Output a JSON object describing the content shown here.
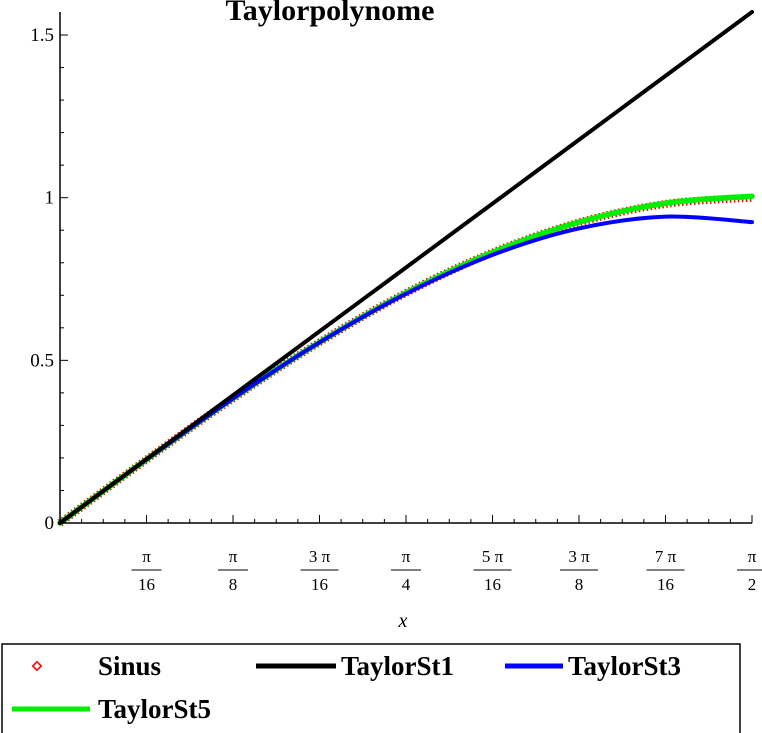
{
  "chart_data": {
    "type": "line",
    "title": "Taylorpolynome",
    "xlabel": "x",
    "ylabel": "",
    "xlim": [
      0,
      1.5707963
    ],
    "ylim": [
      0,
      1.5707963
    ],
    "grid": false,
    "legend_placement": "bottom",
    "x_ticks": [
      {
        "value": 0.19634954,
        "num": "π",
        "den": "16"
      },
      {
        "value": 0.39269908,
        "num": "π",
        "den": "8"
      },
      {
        "value": 0.58904862,
        "num": "3 π",
        "den": "16"
      },
      {
        "value": 0.78539816,
        "num": "π",
        "den": "4"
      },
      {
        "value": 0.9817477,
        "num": "5 π",
        "den": "16"
      },
      {
        "value": 1.17809725,
        "num": "3 π",
        "den": "8"
      },
      {
        "value": 1.37444679,
        "num": "7 π",
        "den": "16"
      },
      {
        "value": 1.57079633,
        "num": "π",
        "den": "2"
      }
    ],
    "y_ticks": [
      {
        "value": 0,
        "label": "0"
      },
      {
        "value": 0.5,
        "label": "0.5"
      },
      {
        "value": 1,
        "label": "1"
      },
      {
        "value": 1.5,
        "label": "1.5"
      }
    ],
    "x": [
      0,
      0.19635,
      0.3927,
      0.58905,
      0.7854,
      0.98175,
      1.1781,
      1.37445,
      1.5708
    ],
    "series": [
      {
        "name": "Sinus",
        "style": "points",
        "color": "#ff0000",
        "values": [
          0,
          0.1951,
          0.3827,
          0.5556,
          0.7071,
          0.8315,
          0.9239,
          0.9808,
          1.0
        ]
      },
      {
        "name": "TaylorSt1",
        "style": "line",
        "color": "#000000",
        "values": [
          0,
          0.1963,
          0.3927,
          0.589,
          0.7854,
          0.9817,
          1.1781,
          1.3744,
          1.5708
        ]
      },
      {
        "name": "TaylorSt3",
        "style": "line",
        "color": "#0000ff",
        "values": [
          0,
          0.1951,
          0.3826,
          0.555,
          0.7046,
          0.8241,
          0.9056,
          0.9417,
          0.9248
        ]
      },
      {
        "name": "TaylorSt5",
        "style": "line",
        "color": "#00ee00",
        "values": [
          0,
          0.1951,
          0.3827,
          0.5556,
          0.7071,
          0.8317,
          0.9248,
          0.9829,
          1.0045
        ]
      }
    ]
  }
}
